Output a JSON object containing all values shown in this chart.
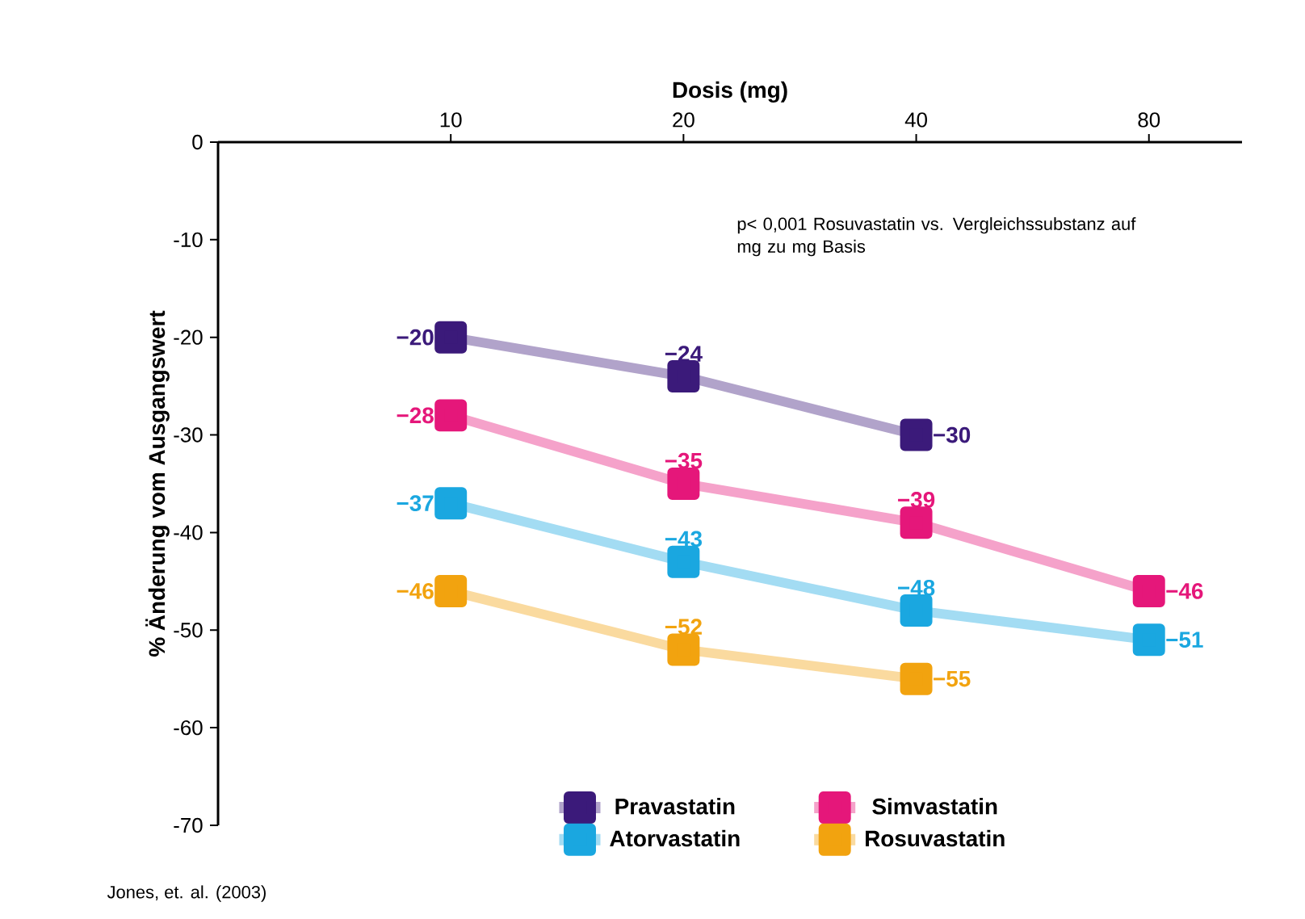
{
  "chart_data": {
    "type": "line",
    "xlabel": "Dosis (mg)",
    "ylabel": "% Änderung vom Ausgangswert",
    "categories": [
      "10",
      "20",
      "40",
      "80"
    ],
    "ylim": [
      -70,
      0
    ],
    "yticks": [
      0,
      -10,
      -20,
      -30,
      -40,
      -50,
      -60,
      -70
    ],
    "marker": "square",
    "data_labels": true,
    "legend": "bottom",
    "grid": false,
    "series": [
      {
        "name": "Pravastatin",
        "color": "#3b1a7a",
        "values": [
          -20,
          -24,
          -30,
          null
        ]
      },
      {
        "name": "Simvastatin",
        "color": "#e5177a",
        "values": [
          -28,
          -35,
          -39,
          -46
        ]
      },
      {
        "name": "Atorvastatin",
        "color": "#1aa7e0",
        "values": [
          -37,
          -43,
          -48,
          -51
        ]
      },
      {
        "name": "Rosuvastatin",
        "color": "#f2a30f",
        "values": [
          -46,
          -52,
          -55,
          null
        ]
      }
    ],
    "annotations": [
      "p< 0,001 Rosuvastatin vs. Vergleichssubstanz auf mg zu mg Basis",
      "Jones, et. al. (2003)"
    ]
  }
}
